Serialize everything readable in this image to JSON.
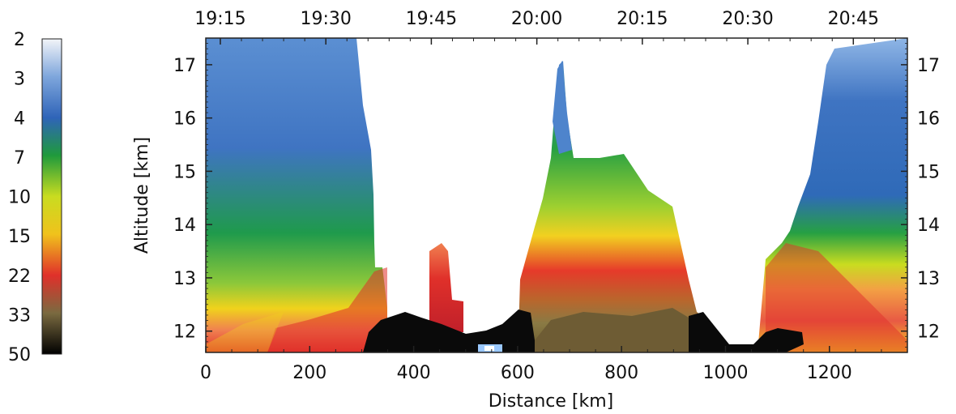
{
  "chart_data": {
    "type": "heatmap",
    "title": "",
    "xlabel": "Distance [km]",
    "ylabel": "Altitude [km]",
    "xlim": [
      0,
      1350
    ],
    "ylim": [
      11.6,
      17.5
    ],
    "x_ticks": [
      0,
      200,
      400,
      600,
      800,
      1000,
      1200
    ],
    "x_tick_labels": [
      "0",
      "200",
      "400",
      "600",
      "800",
      "1000",
      "1200"
    ],
    "y_ticks": [
      12,
      13,
      14,
      15,
      16,
      17
    ],
    "y_tick_labels": [
      "12",
      "13",
      "14",
      "15",
      "16",
      "17"
    ],
    "time_ticks": [
      {
        "label": "19:15",
        "km": 28
      },
      {
        "label": "19:30",
        "km": 231
      },
      {
        "label": "19:45",
        "km": 434
      },
      {
        "label": "20:00",
        "km": 637
      },
      {
        "label": "20:15",
        "km": 840
      },
      {
        "label": "20:30",
        "km": 1043
      },
      {
        "label": "20:45",
        "km": 1246
      }
    ],
    "colorbar": {
      "labels": [
        "2",
        "3",
        "4",
        "7",
        "10",
        "15",
        "22",
        "33",
        "50"
      ],
      "colors": [
        "#f2f4f8",
        "#7ea6dc",
        "#2f64b8",
        "#1f9a3c",
        "#c9dc20",
        "#f0c21c",
        "#e0302a",
        "#7a6a40",
        "#000000"
      ]
    },
    "series": [
      {
        "x_km": [
          0,
          200,
          280,
          300,
          320,
          330
        ],
        "top_km": [
          17.5,
          17.5,
          17.5,
          16.5,
          15.3,
          13.1
        ],
        "note_levels": "blue aloft, green 13-14 km, yellow/red near 12 km"
      }
    ]
  }
}
